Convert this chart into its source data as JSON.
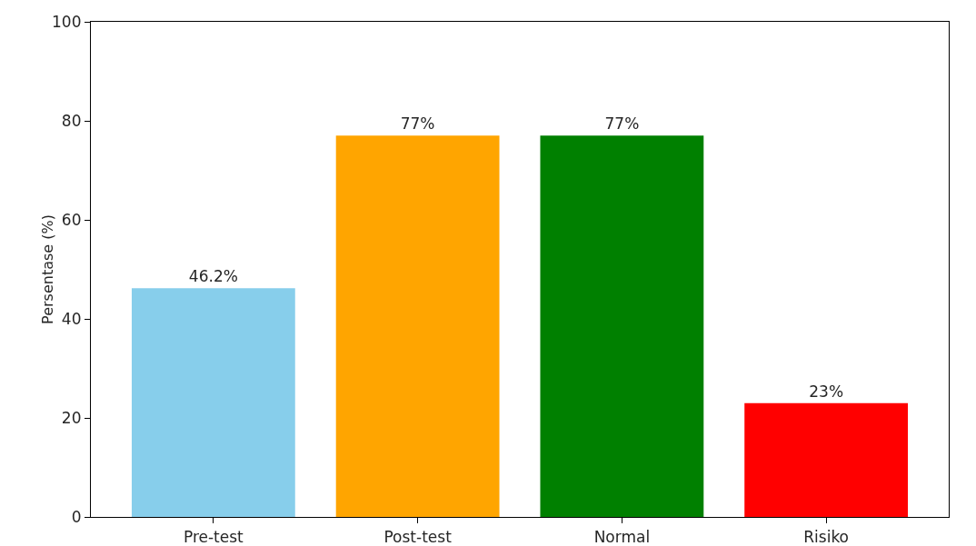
{
  "chart_data": {
    "type": "bar",
    "ylabel": "Persentase (%)",
    "categories": [
      "Pre-test",
      "Post-test",
      "Normal",
      "Risiko"
    ],
    "values": [
      46.2,
      77,
      77,
      23
    ],
    "colors": [
      "#87ceeb",
      "#ffa500",
      "#008000",
      "#ff0000"
    ],
    "value_labels": [
      "46.2%",
      "77%",
      "77%",
      "23%"
    ],
    "ylim": [
      0,
      100
    ],
    "yticks": [
      0,
      20,
      40,
      60,
      80,
      100
    ],
    "grid": false
  }
}
